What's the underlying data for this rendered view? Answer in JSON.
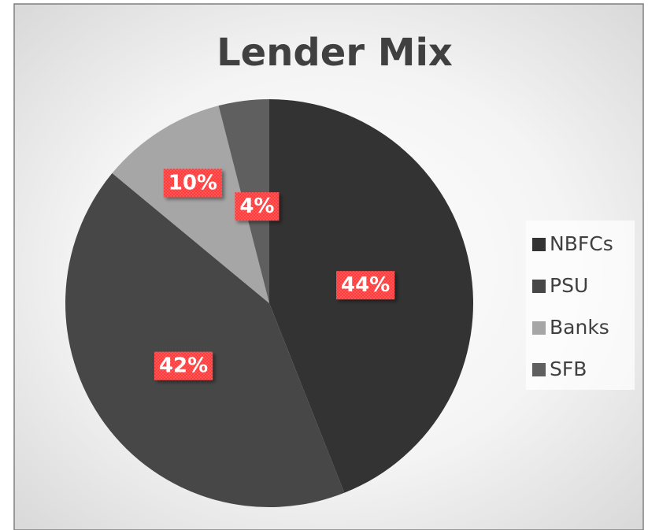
{
  "chart_data": {
    "type": "pie",
    "title": "Lender Mix",
    "categories": [
      "NBFCs",
      "PSU",
      "Banks",
      "SFB"
    ],
    "values": [
      44,
      42,
      10,
      4
    ],
    "value_labels": [
      "44%",
      "42%",
      "10%",
      "4%"
    ],
    "colors": [
      "#333333",
      "#474747",
      "#a6a6a6",
      "#5f5f5f"
    ],
    "legend": "right"
  }
}
